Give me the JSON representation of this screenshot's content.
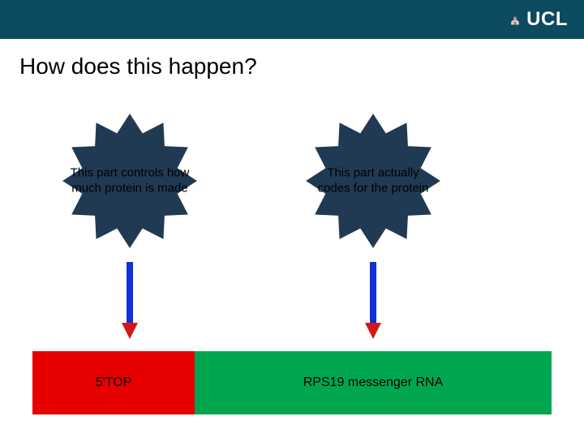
{
  "header": {
    "bg_color": "#0b4a5f",
    "logo_text": "UCL",
    "logo_prefix_glyph": "⛪"
  },
  "title": "How does this happen?",
  "starbursts": {
    "left": {
      "text": "This part controls how much protein is made",
      "fill_color": "#203a53",
      "stroke_color": "#203a53"
    },
    "right": {
      "text": "This part actually codes for the protein",
      "fill_color": "#203a53",
      "stroke_color": "#203a53"
    },
    "points": 12,
    "outer_r": 82,
    "inner_r": 60
  },
  "arrows": {
    "shaft_color": "#1030d8",
    "head_color": "#d01818",
    "shaft_width": 8,
    "head_width": 20,
    "head_height": 20
  },
  "bar": {
    "segments": [
      {
        "key": "red",
        "color": "#e60000",
        "label": "5'TOP"
      },
      {
        "key": "green",
        "color": "#00a64f",
        "label": "RPS19 messenger RNA"
      }
    ]
  }
}
